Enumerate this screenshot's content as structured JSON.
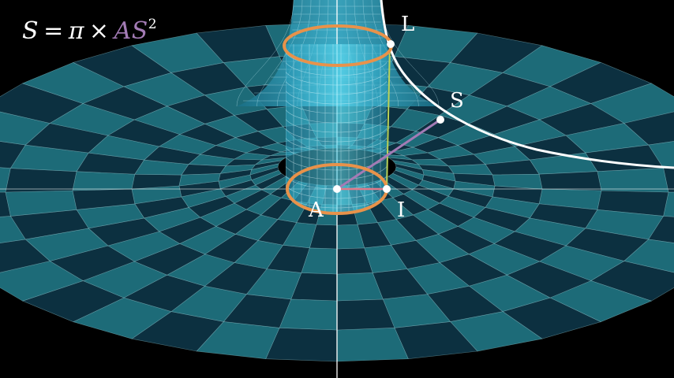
{
  "formula": {
    "lhs": "S",
    "equals": "=",
    "pi": "π",
    "times": "×",
    "rhs_term": "AS",
    "exponent": "2"
  },
  "points": {
    "L": "L",
    "S": "S",
    "A": "A",
    "I": "I"
  },
  "colors": {
    "background": "#000000",
    "surface_light": "#1d6b78",
    "surface_dark": "#0c3040",
    "grid_line": "#9fd4dc",
    "cylinder": "#4fd3ea",
    "circle": "#e8924a",
    "segment_AS": "#a37bb5",
    "segment_AI": "#e07a8a",
    "segment_IL": "#b9d35a",
    "profile_curve": "#ffffff",
    "axis": "#ffffff"
  }
}
